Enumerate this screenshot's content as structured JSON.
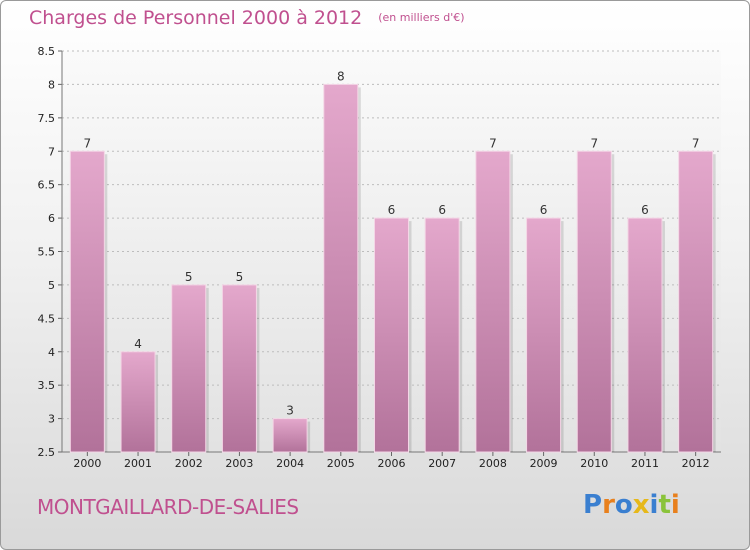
{
  "header": {
    "title": "Charges de Personnel 2000 à 2012",
    "unit_note": "(en milliers d'€)"
  },
  "footer": {
    "place_name": "MONTGAILLARD-DE-SALIES",
    "logo_text": "Proxiti"
  },
  "colors": {
    "title": "#c0508f",
    "bar_top": "#e4a8cc",
    "bar_bottom": "#b2729a",
    "logo": [
      "#3a7fd0",
      "#e8801d",
      "#3a7fd0",
      "#e6b81a",
      "#3a7fd0",
      "#8ac33a",
      "#e8801d"
    ]
  },
  "chart_data": {
    "type": "bar",
    "title": "Charges de Personnel 2000 à 2012",
    "subtitle": "(en milliers d'€)",
    "categories": [
      "2000",
      "2001",
      "2002",
      "2003",
      "2004",
      "2005",
      "2006",
      "2007",
      "2008",
      "2009",
      "2010",
      "2011",
      "2012"
    ],
    "values": [
      7,
      4,
      5,
      5,
      3,
      8,
      6,
      6,
      7,
      6,
      7,
      6,
      7
    ],
    "data_labels": [
      "7",
      "4",
      "5",
      "5",
      "3",
      "8",
      "6",
      "6",
      "7",
      "6",
      "7",
      "6",
      "7"
    ],
    "ylim": [
      2.5,
      8.5
    ],
    "yticks": [
      2.5,
      3,
      3.5,
      4,
      4.5,
      5,
      5.5,
      6,
      6.5,
      7,
      7.5,
      8,
      8.5
    ],
    "ytick_labels": [
      "2.5",
      "3",
      "3.5",
      "4",
      "4.5",
      "5",
      "5.5",
      "6",
      "6.5",
      "7",
      "7.5",
      "8",
      "8.5"
    ],
    "grid": true,
    "xlabel": "",
    "ylabel": ""
  }
}
